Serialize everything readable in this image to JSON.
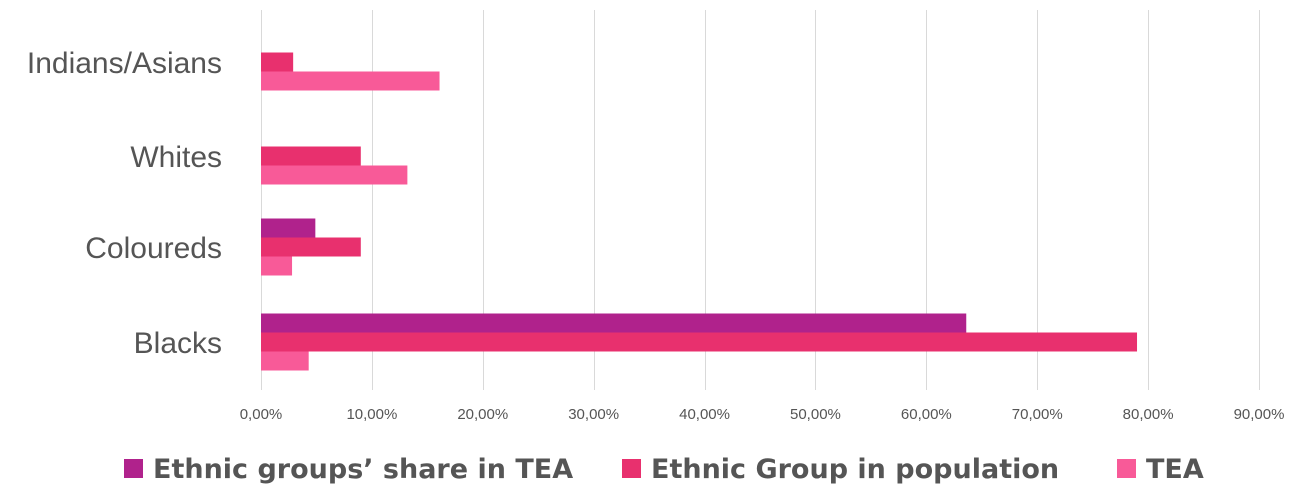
{
  "chart_data": {
    "type": "bar",
    "orientation": "horizontal",
    "categories": [
      "Blacks",
      "Coloureds",
      "Whites",
      "Indians/Asians"
    ],
    "series": [
      {
        "name": "Ethnic groups’ share in TEA",
        "color": "#b0228c",
        "values": [
          63.6,
          4.9,
          null,
          null
        ]
      },
      {
        "name": "Ethnic Group in population",
        "color": "#e8306e",
        "values": [
          79.0,
          9.0,
          9.0,
          2.9
        ]
      },
      {
        "name": "TEA",
        "color": "#f85a98",
        "values": [
          4.3,
          2.8,
          13.2,
          16.1
        ]
      }
    ],
    "xlim": [
      0,
      90
    ],
    "xticks": [
      0,
      10,
      20,
      30,
      40,
      50,
      60,
      70,
      80,
      90
    ],
    "xtick_labels": [
      "0,00%",
      "10,00%",
      "20,00%",
      "30,00%",
      "40,00%",
      "50,00%",
      "60,00%",
      "70,00%",
      "80,00%",
      "90,00%"
    ],
    "grid": true,
    "legend_position": "bottom"
  }
}
